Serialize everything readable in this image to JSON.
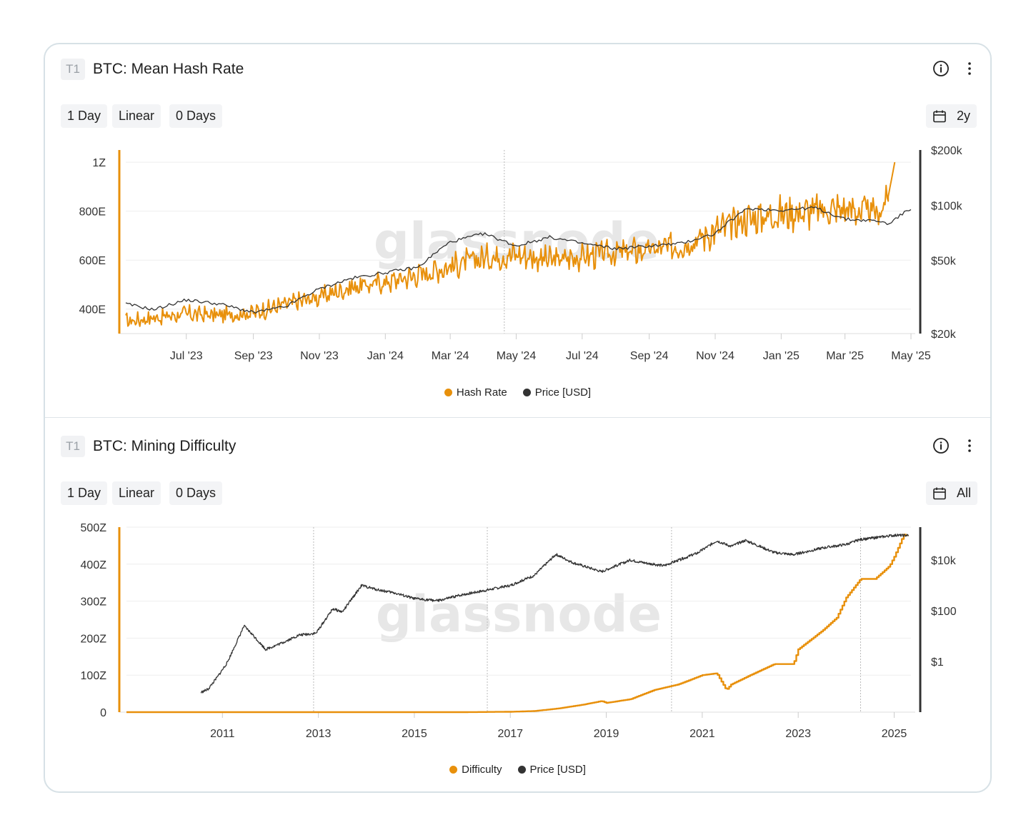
{
  "panels": [
    {
      "badge": "T1",
      "title": "BTC: Mean Hash Rate",
      "controls": {
        "resolution": "1 Day",
        "scale": "Linear",
        "ma": "0 Days",
        "range": "2y"
      },
      "watermark": "glassnode",
      "colors": {
        "primary": "#E8900B",
        "price": "#333333"
      },
      "icons": [
        "info-icon",
        "more-vertical-icon",
        "calendar-icon"
      ],
      "legend": [
        {
          "label": "Hash Rate",
          "color": "#E8900B"
        },
        {
          "label": "Price [USD]",
          "color": "#333333"
        }
      ]
    },
    {
      "badge": "T1",
      "title": "BTC: Mining Difficulty",
      "controls": {
        "resolution": "1 Day",
        "scale": "Linear",
        "ma": "0 Days",
        "range": "All"
      },
      "watermark": "glassnode",
      "colors": {
        "primary": "#E8900B",
        "price": "#333333"
      },
      "icons": [
        "info-icon",
        "more-vertical-icon",
        "calendar-icon"
      ],
      "legend": [
        {
          "label": "Difficulty",
          "color": "#E8900B"
        },
        {
          "label": "Price [USD]",
          "color": "#333333"
        }
      ]
    }
  ],
  "chart_data": [
    {
      "type": "line",
      "title": "BTC: Mean Hash Rate",
      "x_ticks": [
        "Jul '23",
        "Sep '23",
        "Nov '23",
        "Jan '24",
        "Mar '24",
        "May '24",
        "Jul '24",
        "Sep '24",
        "Nov '24",
        "Jan '25",
        "Mar '25",
        "May '25"
      ],
      "x_tick_dates": [
        "2023-07-01",
        "2023-09-01",
        "2023-11-01",
        "2024-01-01",
        "2024-03-01",
        "2024-05-01",
        "2024-07-01",
        "2024-09-01",
        "2024-11-01",
        "2025-01-01",
        "2025-03-01",
        "2025-05-01"
      ],
      "x_range": [
        "2023-05-06",
        "2025-05-01"
      ],
      "y_left_ticks": [
        "1Z",
        "800E",
        "600E",
        "400E"
      ],
      "y_left_tick_values_EH": [
        1000,
        800,
        600,
        400
      ],
      "y_left_range_EH": [
        300,
        1050
      ],
      "y_right_ticks": [
        "$200k",
        "$100k",
        "$50k",
        "$20k"
      ],
      "y_right_scale": "log",
      "y_right_range": [
        20000,
        200000
      ],
      "vertical_marker": "2024-04-20",
      "grid": "horizontal",
      "legend_position": "bottom-center",
      "series": [
        {
          "name": "Hash Rate",
          "color": "#E8900B",
          "unit": "EH/s",
          "x": [
            "2023-05-06",
            "2023-06-01",
            "2023-07-01",
            "2023-08-01",
            "2023-09-01",
            "2023-10-01",
            "2023-11-01",
            "2023-12-01",
            "2024-01-01",
            "2024-02-01",
            "2024-03-01",
            "2024-04-01",
            "2024-05-01",
            "2024-06-01",
            "2024-07-01",
            "2024-08-01",
            "2024-09-01",
            "2024-10-01",
            "2024-11-01",
            "2024-12-01",
            "2025-01-01",
            "2025-02-01",
            "2025-03-01",
            "2025-04-01",
            "2025-04-10",
            "2025-04-16"
          ],
          "values": [
            350,
            365,
            380,
            375,
            385,
            420,
            450,
            490,
            510,
            540,
            575,
            610,
            625,
            600,
            615,
            630,
            640,
            660,
            720,
            770,
            790,
            800,
            810,
            790,
            860,
            1000
          ]
        },
        {
          "name": "Price [USD]",
          "color": "#333333",
          "x": [
            "2023-05-06",
            "2023-06-01",
            "2023-07-01",
            "2023-08-01",
            "2023-09-01",
            "2023-10-01",
            "2023-11-01",
            "2023-12-01",
            "2024-01-01",
            "2024-02-01",
            "2024-03-01",
            "2024-04-01",
            "2024-05-01",
            "2024-06-01",
            "2024-07-01",
            "2024-08-01",
            "2024-09-01",
            "2024-10-01",
            "2024-11-01",
            "2024-12-01",
            "2025-01-01",
            "2025-02-01",
            "2025-03-01",
            "2025-04-01",
            "2025-04-10",
            "2025-05-01"
          ],
          "values": [
            29000,
            27000,
            30500,
            29000,
            26000,
            28000,
            35000,
            40000,
            43000,
            46000,
            63000,
            70000,
            60000,
            67000,
            62000,
            58000,
            60000,
            62000,
            70000,
            96000,
            94000,
            97000,
            84000,
            82000,
            79000,
            96000
          ]
        }
      ]
    },
    {
      "type": "line",
      "title": "BTC: Mining Difficulty",
      "x_ticks": [
        "2011",
        "2013",
        "2015",
        "2017",
        "2019",
        "2021",
        "2023",
        "2025"
      ],
      "x_tick_years": [
        2011,
        2013,
        2015,
        2017,
        2019,
        2021,
        2023,
        2025
      ],
      "x_range": [
        2009.0,
        2025.35
      ],
      "y_left_ticks": [
        "500Z",
        "400Z",
        "300Z",
        "200Z",
        "100Z",
        "0"
      ],
      "y_left_tick_values_Z": [
        500,
        400,
        300,
        200,
        100,
        0
      ],
      "y_left_range_Z": [
        0,
        500
      ],
      "y_right_ticks": [
        "$10k",
        "$100",
        "$1"
      ],
      "y_right_scale": "log",
      "y_right_range": [
        0.01,
        200000
      ],
      "vertical_markers": [
        2012.9,
        2016.52,
        2020.36,
        2024.3
      ],
      "grid": "horizontal",
      "legend_position": "bottom-center",
      "series": [
        {
          "name": "Difficulty",
          "color": "#E8900B",
          "unit": "Z",
          "x": [
            2009.0,
            2016.0,
            2017.0,
            2017.5,
            2018.0,
            2018.5,
            2018.9,
            2019.0,
            2019.5,
            2020.0,
            2020.5,
            2021.0,
            2021.3,
            2021.5,
            2021.6,
            2022.0,
            2022.5,
            2022.9,
            2023.0,
            2023.5,
            2023.8,
            2024.0,
            2024.3,
            2024.6,
            2024.9,
            2025.0,
            2025.2,
            2025.3
          ],
          "values": [
            0,
            0,
            1,
            3,
            10,
            20,
            30,
            25,
            35,
            60,
            75,
            100,
            105,
            60,
            75,
            100,
            130,
            130,
            170,
            220,
            255,
            310,
            360,
            360,
            395,
            420,
            480,
            475
          ]
        },
        {
          "name": "Price [USD]",
          "color": "#333333",
          "x": [
            2010.55,
            2010.7,
            2010.9,
            2011.1,
            2011.45,
            2011.6,
            2011.9,
            2012.2,
            2012.6,
            2012.95,
            2013.3,
            2013.5,
            2013.9,
            2014.2,
            2014.6,
            2015.0,
            2015.5,
            2016.0,
            2016.5,
            2017.0,
            2017.5,
            2017.95,
            2018.3,
            2018.9,
            2019.5,
            2019.9,
            2020.2,
            2020.9,
            2021.3,
            2021.6,
            2021.9,
            2022.5,
            2022.9,
            2023.5,
            2024.0,
            2024.3,
            2025.0,
            2025.3
          ],
          "values": [
            0.06,
            0.08,
            0.25,
            0.9,
            25,
            13,
            3,
            5,
            11,
            13,
            120,
            90,
            1000,
            700,
            500,
            300,
            250,
            430,
            650,
            1000,
            2500,
            17000,
            8000,
            3500,
            10000,
            7200,
            6000,
            19000,
            58000,
            35000,
            60000,
            20000,
            16500,
            30000,
            42000,
            65000,
            95000,
            95000
          ]
        }
      ]
    }
  ]
}
